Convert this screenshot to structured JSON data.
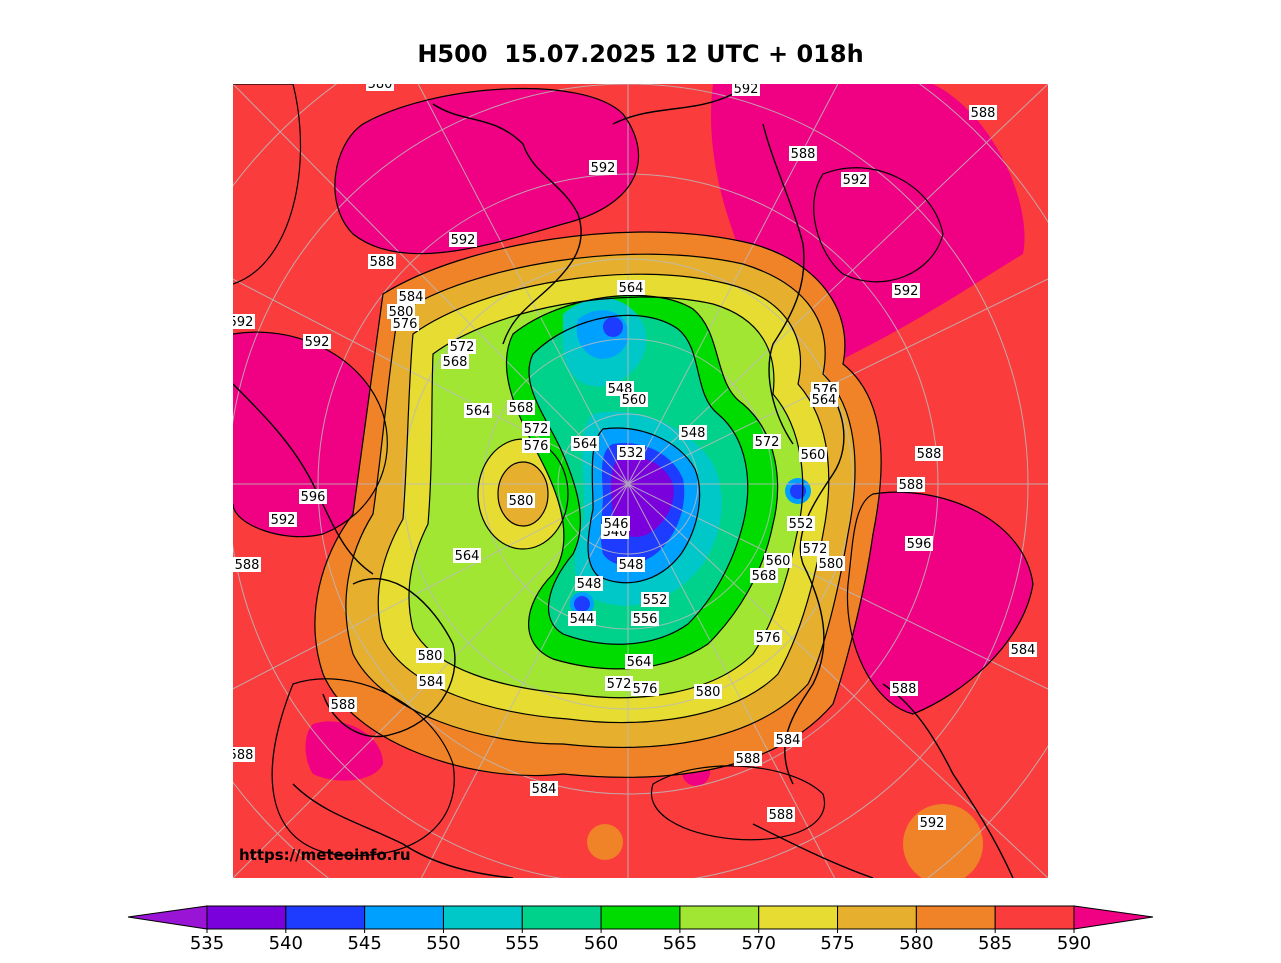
{
  "title": "H500  15.07.2025 12 UTC + 018h",
  "source_url": "https://meteoinfo.ru",
  "colors": {
    "c535": "#9a14d6",
    "c540": "#7a00dc",
    "c545": "#1e3cff",
    "c550": "#00a0ff",
    "c555": "#00c8c8",
    "c560": "#00d28c",
    "c565": "#00dc00",
    "c570": "#a0e632",
    "c575": "#e6dc32",
    "c580": "#e6af2d",
    "c585": "#f08228",
    "c590": "#fa3c3c",
    "c595": "#f00082"
  },
  "colorbar": {
    "ticks": [
      "535",
      "540",
      "545",
      "550",
      "555",
      "560",
      "565",
      "570",
      "575",
      "580",
      "585",
      "590"
    ],
    "bins": [
      "#7a00dc",
      "#1e3cff",
      "#00a0ff",
      "#00c8c8",
      "#00d28c",
      "#00dc00",
      "#a0e632",
      "#e6dc32",
      "#e6af2d",
      "#f08228",
      "#fa3c3c"
    ],
    "under_color": "#9a14d6",
    "over_color": "#f00082"
  },
  "contour_labels": [
    "580",
    "592",
    "588",
    "592",
    "588",
    "592",
    "592",
    "592",
    "588",
    "584",
    "580",
    "576",
    "592",
    "564",
    "572",
    "568",
    "592",
    "564",
    "568",
    "572",
    "576",
    "564",
    "532",
    "548",
    "572",
    "560",
    "576",
    "564",
    "588",
    "588",
    "580",
    "596",
    "592",
    "588",
    "564",
    "540",
    "552",
    "572",
    "580",
    "596",
    "548",
    "544",
    "548",
    "552",
    "556",
    "564",
    "572",
    "576",
    "580",
    "576",
    "588",
    "580",
    "584",
    "588",
    "584",
    "588",
    "588",
    "584",
    "592",
    "588",
    "584",
    "548",
    "560",
    "568",
    "560",
    "546"
  ]
}
